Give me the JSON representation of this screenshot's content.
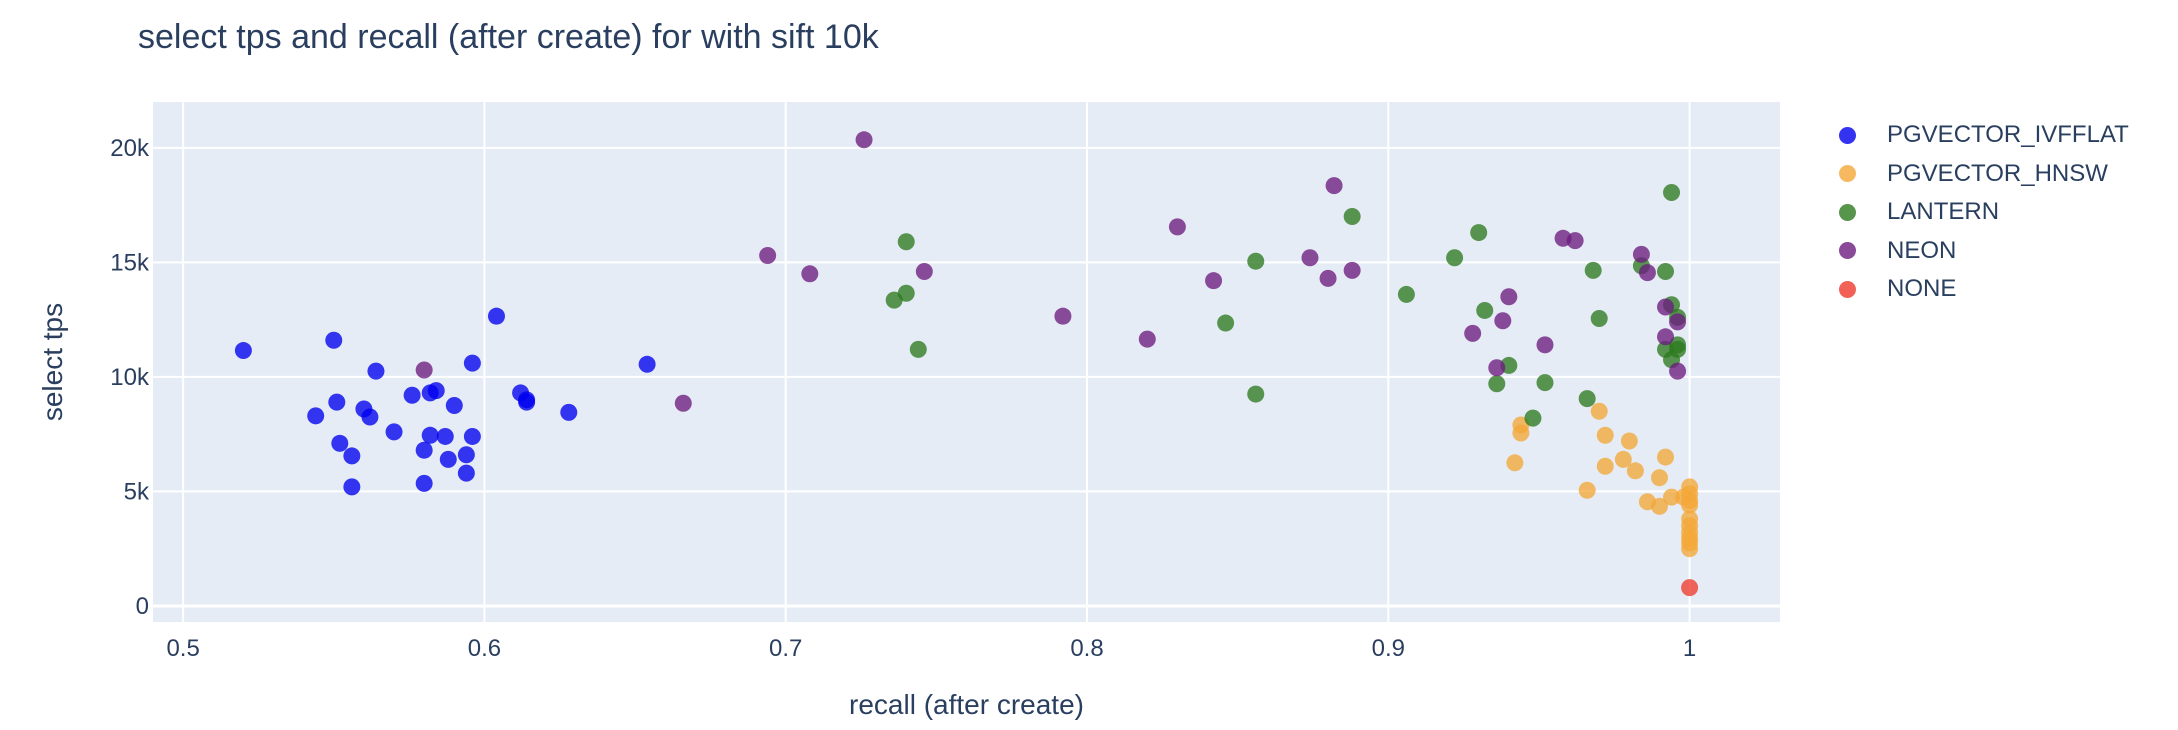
{
  "chart_data": {
    "type": "scatter",
    "title": "select tps and recall (after create) for with sift 10k",
    "xlabel": "recall (after create)",
    "ylabel": "select tps",
    "xlim": [
      0.49,
      1.03
    ],
    "ylim": [
      -700,
      22000
    ],
    "xticks": [
      {
        "value": 0.5,
        "label": "0.5"
      },
      {
        "value": 0.6,
        "label": "0.6"
      },
      {
        "value": 0.7,
        "label": "0.7"
      },
      {
        "value": 0.8,
        "label": "0.8"
      },
      {
        "value": 0.9,
        "label": "0.9"
      },
      {
        "value": 1.0,
        "label": "1"
      }
    ],
    "yticks": [
      {
        "value": 0,
        "label": "0"
      },
      {
        "value": 5000,
        "label": "5k"
      },
      {
        "value": 10000,
        "label": "10k"
      },
      {
        "value": 15000,
        "label": "15k"
      },
      {
        "value": 20000,
        "label": "20k"
      }
    ],
    "grid": true,
    "legend_position": "right",
    "plot_background": "#e5ecf6",
    "series": [
      {
        "name": "PGVECTOR_IVFFLAT",
        "color": "#0000ee",
        "points": [
          {
            "x": 0.52,
            "y": 11150
          },
          {
            "x": 0.55,
            "y": 11600
          },
          {
            "x": 0.544,
            "y": 8300
          },
          {
            "x": 0.551,
            "y": 8900
          },
          {
            "x": 0.552,
            "y": 7100
          },
          {
            "x": 0.556,
            "y": 6550
          },
          {
            "x": 0.556,
            "y": 5200
          },
          {
            "x": 0.56,
            "y": 8600
          },
          {
            "x": 0.562,
            "y": 8250
          },
          {
            "x": 0.564,
            "y": 10250
          },
          {
            "x": 0.57,
            "y": 7600
          },
          {
            "x": 0.576,
            "y": 9200
          },
          {
            "x": 0.58,
            "y": 6800
          },
          {
            "x": 0.58,
            "y": 5350
          },
          {
            "x": 0.582,
            "y": 9300
          },
          {
            "x": 0.582,
            "y": 7450
          },
          {
            "x": 0.584,
            "y": 9400
          },
          {
            "x": 0.587,
            "y": 7400
          },
          {
            "x": 0.588,
            "y": 6400
          },
          {
            "x": 0.59,
            "y": 8750
          },
          {
            "x": 0.594,
            "y": 6600
          },
          {
            "x": 0.594,
            "y": 5800
          },
          {
            "x": 0.596,
            "y": 10600
          },
          {
            "x": 0.596,
            "y": 7400
          },
          {
            "x": 0.604,
            "y": 12650
          },
          {
            "x": 0.612,
            "y": 9300
          },
          {
            "x": 0.614,
            "y": 9000
          },
          {
            "x": 0.614,
            "y": 8900
          },
          {
            "x": 0.628,
            "y": 8450
          },
          {
            "x": 0.654,
            "y": 10550
          }
        ]
      },
      {
        "name": "PGVECTOR_HNSW",
        "color": "#f4a838",
        "points": [
          {
            "x": 0.942,
            "y": 6250
          },
          {
            "x": 0.944,
            "y": 7900
          },
          {
            "x": 0.944,
            "y": 7550
          },
          {
            "x": 0.966,
            "y": 5050
          },
          {
            "x": 0.97,
            "y": 8500
          },
          {
            "x": 0.972,
            "y": 7450
          },
          {
            "x": 0.972,
            "y": 6100
          },
          {
            "x": 0.978,
            "y": 6400
          },
          {
            "x": 0.98,
            "y": 7200
          },
          {
            "x": 0.982,
            "y": 5900
          },
          {
            "x": 0.986,
            "y": 4550
          },
          {
            "x": 0.99,
            "y": 5600
          },
          {
            "x": 0.99,
            "y": 4350
          },
          {
            "x": 0.992,
            "y": 6500
          },
          {
            "x": 0.994,
            "y": 4750
          },
          {
            "x": 0.998,
            "y": 4750
          },
          {
            "x": 1.0,
            "y": 5200
          },
          {
            "x": 1.0,
            "y": 4900
          },
          {
            "x": 1.0,
            "y": 4600
          },
          {
            "x": 1.0,
            "y": 4400
          },
          {
            "x": 1.0,
            "y": 3800
          },
          {
            "x": 1.0,
            "y": 3500
          },
          {
            "x": 1.0,
            "y": 3200
          },
          {
            "x": 1.0,
            "y": 2950
          },
          {
            "x": 1.0,
            "y": 2750
          },
          {
            "x": 1.0,
            "y": 2500
          }
        ]
      },
      {
        "name": "LANTERN",
        "color": "#2d7a1f",
        "points": [
          {
            "x": 0.736,
            "y": 13350
          },
          {
            "x": 0.74,
            "y": 15900
          },
          {
            "x": 0.74,
            "y": 13650
          },
          {
            "x": 0.744,
            "y": 11200
          },
          {
            "x": 0.846,
            "y": 12350
          },
          {
            "x": 0.856,
            "y": 15050
          },
          {
            "x": 0.856,
            "y": 9250
          },
          {
            "x": 0.888,
            "y": 17000
          },
          {
            "x": 0.906,
            "y": 13600
          },
          {
            "x": 0.922,
            "y": 15200
          },
          {
            "x": 0.93,
            "y": 16300
          },
          {
            "x": 0.932,
            "y": 12900
          },
          {
            "x": 0.936,
            "y": 9700
          },
          {
            "x": 0.94,
            "y": 10500
          },
          {
            "x": 0.948,
            "y": 8200
          },
          {
            "x": 0.952,
            "y": 9750
          },
          {
            "x": 0.966,
            "y": 9050
          },
          {
            "x": 0.968,
            "y": 14650
          },
          {
            "x": 0.97,
            "y": 12550
          },
          {
            "x": 0.984,
            "y": 14850
          },
          {
            "x": 0.992,
            "y": 14600
          },
          {
            "x": 0.992,
            "y": 11200
          },
          {
            "x": 0.994,
            "y": 18050
          },
          {
            "x": 0.994,
            "y": 13150
          },
          {
            "x": 0.994,
            "y": 10750
          },
          {
            "x": 0.996,
            "y": 12600
          },
          {
            "x": 0.996,
            "y": 11400
          },
          {
            "x": 0.996,
            "y": 11200
          }
        ]
      },
      {
        "name": "NEON",
        "color": "#6d1c7f",
        "points": [
          {
            "x": 0.58,
            "y": 10300
          },
          {
            "x": 0.666,
            "y": 8850
          },
          {
            "x": 0.694,
            "y": 15300
          },
          {
            "x": 0.708,
            "y": 14500
          },
          {
            "x": 0.726,
            "y": 20350
          },
          {
            "x": 0.746,
            "y": 14600
          },
          {
            "x": 0.792,
            "y": 12650
          },
          {
            "x": 0.82,
            "y": 11650
          },
          {
            "x": 0.83,
            "y": 16550
          },
          {
            "x": 0.842,
            "y": 14200
          },
          {
            "x": 0.874,
            "y": 15200
          },
          {
            "x": 0.88,
            "y": 14300
          },
          {
            "x": 0.882,
            "y": 18350
          },
          {
            "x": 0.888,
            "y": 14650
          },
          {
            "x": 0.928,
            "y": 11900
          },
          {
            "x": 0.936,
            "y": 10400
          },
          {
            "x": 0.938,
            "y": 12450
          },
          {
            "x": 0.94,
            "y": 13500
          },
          {
            "x": 0.952,
            "y": 11400
          },
          {
            "x": 0.958,
            "y": 16050
          },
          {
            "x": 0.962,
            "y": 15950
          },
          {
            "x": 0.984,
            "y": 15350
          },
          {
            "x": 0.986,
            "y": 14550
          },
          {
            "x": 0.992,
            "y": 13050
          },
          {
            "x": 0.992,
            "y": 11750
          },
          {
            "x": 0.996,
            "y": 12400
          },
          {
            "x": 0.996,
            "y": 10250
          }
        ]
      },
      {
        "name": "NONE",
        "color": "#ee3a2c",
        "points": [
          {
            "x": 1.0,
            "y": 800
          }
        ]
      }
    ]
  }
}
